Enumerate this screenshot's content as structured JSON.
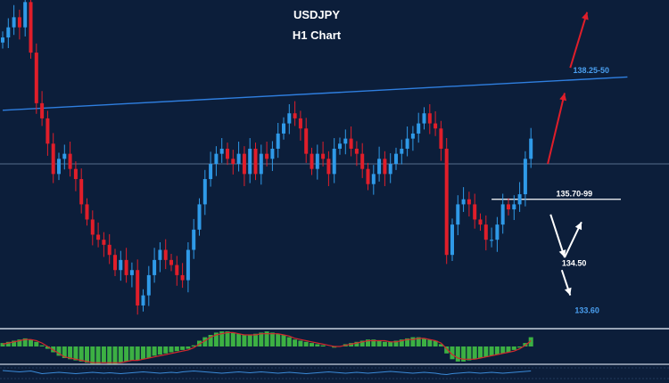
{
  "chart_data": {
    "type": "candlestick",
    "title": "USDJPY",
    "subtitle": "H1 Chart",
    "ylim": [
      133.3,
      139.5
    ],
    "colors": {
      "background": "#0c1e3a",
      "bull": "#2f9ae8",
      "bear": "#e01e2a",
      "trendline": "#2f7fe0",
      "hline": "#6f88a8",
      "histogram": "#3cb043",
      "signal": "#d0282e",
      "up_arrow": "#e01e2a",
      "down_arrow": "#ffffff",
      "label_blue": "#4a9ff0",
      "label_white": "#ffffff"
    },
    "closes": [
      138.9,
      139.1,
      139.3,
      139.1,
      139.6,
      138.6,
      137.6,
      137.3,
      136.8,
      136.2,
      136.5,
      136.6,
      136.3,
      136.1,
      135.6,
      135.3,
      135.0,
      134.9,
      134.8,
      134.6,
      134.3,
      134.5,
      134.2,
      134.3,
      133.6,
      133.8,
      134.2,
      134.5,
      134.7,
      134.5,
      134.4,
      134.2,
      134.1,
      134.7,
      135.1,
      135.6,
      136.1,
      136.4,
      136.6,
      136.7,
      136.5,
      136.4,
      136.6,
      136.2,
      136.7,
      136.2,
      136.6,
      136.5,
      136.7,
      137.0,
      137.2,
      137.4,
      137.3,
      137.1,
      136.6,
      136.3,
      136.6,
      136.5,
      136.2,
      136.7,
      136.8,
      136.9,
      136.7,
      136.6,
      136.3,
      136.0,
      136.2,
      136.5,
      136.2,
      136.4,
      136.6,
      136.7,
      136.9,
      137.0,
      137.2,
      137.4,
      137.2,
      137.1,
      136.7,
      134.6,
      135.2,
      135.6,
      135.7,
      135.6,
      135.3,
      135.2,
      134.9,
      134.9,
      135.2,
      135.6,
      135.5,
      135.6,
      135.8,
      136.5,
      136.9
    ],
    "hlines": [
      136.4,
      135.7
    ],
    "trendline": {
      "from": [
        0,
        137.46
      ],
      "to": [
        108,
        138.1
      ]
    },
    "arrows": [
      {
        "kind": "up",
        "from": [
          97,
          136.4
        ],
        "to": [
          100,
          137.8
        ]
      },
      {
        "kind": "up",
        "from": [
          101,
          138.3
        ],
        "to": [
          104,
          139.4
        ]
      },
      {
        "kind": "down",
        "from": [
          97.5,
          135.4
        ],
        "to": [
          100,
          134.55
        ]
      },
      {
        "kind": "up",
        "from": [
          100,
          134.55
        ],
        "to": [
          103,
          135.25
        ]
      },
      {
        "kind": "down",
        "from": [
          99.5,
          134.3
        ],
        "to": [
          101,
          133.8
        ]
      }
    ],
    "levels": [
      {
        "text": "138.25-50",
        "at": [
          101.5,
          138.2
        ],
        "color": "blue"
      },
      {
        "text": "135.70-99",
        "at": [
          98.5,
          135.76
        ],
        "color": "white"
      },
      {
        "text": "134.50",
        "at": [
          99.5,
          134.38
        ],
        "color": "white"
      },
      {
        "text": "133.60",
        "at": [
          101.8,
          133.45
        ],
        "color": "blue"
      }
    ],
    "oscillator_histogram": [
      0.3,
      0.4,
      0.5,
      0.6,
      0.7,
      0.6,
      0.4,
      0.1,
      -0.2,
      -0.5,
      -0.8,
      -1.0,
      -1.1,
      -1.2,
      -1.3,
      -1.4,
      -1.5,
      -1.5,
      -1.4,
      -1.5,
      -1.5,
      -1.4,
      -1.3,
      -1.2,
      -1.2,
      -1.1,
      -1.0,
      -0.8,
      -0.7,
      -0.6,
      -0.5,
      -0.4,
      -0.3,
      -0.2,
      0.1,
      0.5,
      0.8,
      1.0,
      1.2,
      1.3,
      1.3,
      1.2,
      1.1,
      1.0,
      1.0,
      1.1,
      1.2,
      1.3,
      1.2,
      1.1,
      1.0,
      0.8,
      0.6,
      0.5,
      0.4,
      0.3,
      0.2,
      0.1,
      0.0,
      -0.1,
      0.0,
      0.2,
      0.3,
      0.4,
      0.5,
      0.6,
      0.6,
      0.5,
      0.4,
      0.4,
      0.5,
      0.6,
      0.7,
      0.8,
      0.8,
      0.7,
      0.6,
      0.5,
      0.2,
      -0.6,
      -1.1,
      -1.3,
      -1.3,
      -1.2,
      -1.1,
      -1.0,
      -0.9,
      -0.8,
      -0.7,
      -0.6,
      -0.5,
      -0.3,
      -0.1,
      0.3,
      0.8
    ],
    "oscillator_signal": [
      0.2,
      0.3,
      0.4,
      0.5,
      0.6,
      0.6,
      0.5,
      0.3,
      0.0,
      -0.3,
      -0.6,
      -0.9,
      -1.0,
      -1.1,
      -1.2,
      -1.3,
      -1.4,
      -1.4,
      -1.4,
      -1.4,
      -1.4,
      -1.4,
      -1.3,
      -1.2,
      -1.2,
      -1.1,
      -1.0,
      -0.9,
      -0.8,
      -0.7,
      -0.6,
      -0.5,
      -0.4,
      -0.3,
      -0.1,
      0.2,
      0.5,
      0.8,
      1.0,
      1.1,
      1.2,
      1.2,
      1.1,
      1.0,
      1.0,
      1.0,
      1.1,
      1.1,
      1.1,
      1.1,
      1.0,
      0.9,
      0.7,
      0.6,
      0.5,
      0.4,
      0.3,
      0.2,
      0.1,
      0.0,
      0.0,
      0.1,
      0.2,
      0.3,
      0.4,
      0.5,
      0.5,
      0.5,
      0.5,
      0.4,
      0.4,
      0.5,
      0.6,
      0.6,
      0.7,
      0.7,
      0.6,
      0.5,
      0.3,
      -0.2,
      -0.7,
      -1.0,
      -1.1,
      -1.1,
      -1.1,
      -1.0,
      -0.9,
      -0.8,
      -0.7,
      -0.6,
      -0.5,
      -0.4,
      -0.2,
      0.1,
      0.5
    ],
    "lower_indicator": [
      0.6,
      0.5,
      0.4,
      0.3,
      0.4,
      0.5,
      0.2,
      -0.1,
      0.0,
      0.1,
      0.2,
      0.1,
      0.0,
      -0.1,
      0.0,
      0.1,
      0.2,
      0.1,
      0.0,
      0.1,
      0.0,
      -0.1,
      0.0,
      0.1,
      0.2,
      0.3,
      0.2,
      0.1,
      0.0,
      0.1,
      0.2,
      0.1,
      0.3,
      0.4,
      0.5,
      0.4,
      0.3,
      0.2,
      0.1,
      0.0,
      0.1,
      0.2,
      0.3,
      0.2,
      0.1,
      0.2,
      0.3,
      0.2,
      0.1,
      0.0,
      0.1,
      0.2,
      0.1,
      0.0,
      -0.1,
      0.0,
      0.1,
      0.2,
      0.3,
      0.2,
      0.1,
      0.0,
      0.1,
      0.2,
      0.1,
      0.0,
      0.1,
      0.2,
      0.3,
      0.4,
      0.3,
      0.2,
      0.1,
      0.0,
      0.1,
      0.2,
      0.1,
      0.0,
      -0.2,
      -0.3,
      -0.1,
      0.0,
      0.1,
      0.2,
      0.1,
      0.0,
      0.1,
      0.2,
      0.1,
      0.0,
      0.1,
      0.2,
      0.3,
      0.4,
      0.5
    ]
  }
}
